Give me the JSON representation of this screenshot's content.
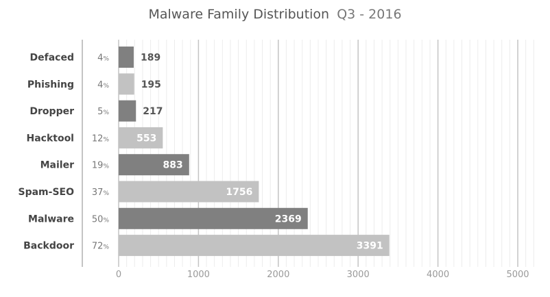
{
  "chart_data": {
    "type": "bar",
    "orientation": "horizontal",
    "title": "Malware Family Distribution",
    "subtitle": "Q3 - 2016",
    "xlabel": "",
    "ylabel": "",
    "xlim": [
      0,
      5000
    ],
    "x_ticks": [
      "0",
      "1000",
      "2000",
      "3000",
      "4000",
      "5000"
    ],
    "grid": true,
    "categories": [
      "Defaced",
      "Phishing",
      "Dropper",
      "Hacktool",
      "Mailer",
      "Spam-SEO",
      "Malware",
      "Backdoor"
    ],
    "values": [
      189,
      195,
      217,
      553,
      883,
      1756,
      2369,
      3391
    ],
    "percent_labels": [
      "4",
      "4",
      "5",
      "12",
      "19",
      "37",
      "50",
      "72"
    ],
    "percent_symbol": "%",
    "colors": [
      "#808080",
      "#c2c2c2",
      "#808080",
      "#c2c2c2",
      "#808080",
      "#c2c2c2",
      "#808080",
      "#c2c2c2"
    ]
  }
}
